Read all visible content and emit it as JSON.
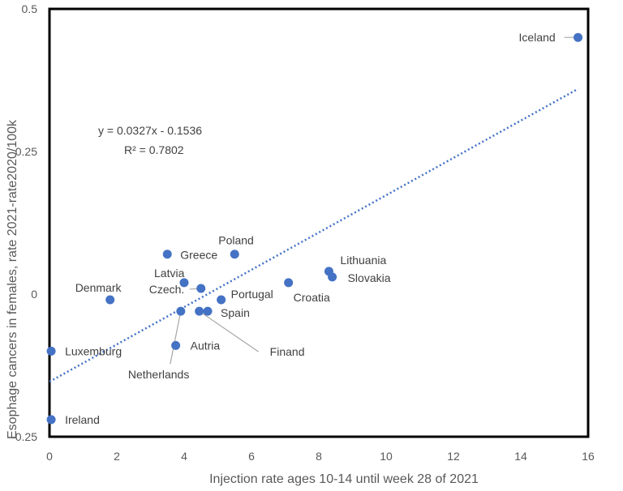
{
  "chart_data": {
    "type": "scatter",
    "xlabel": "Injection rate ages 10-14 until week 28 of 2021",
    "ylabel": "Esophage cancers in females, rate 2021-rate2020/100k",
    "xlim": [
      0,
      16
    ],
    "ylim": [
      -0.25,
      0.5
    ],
    "x_ticks": [
      "0",
      "2",
      "4",
      "6",
      "8",
      "10",
      "12",
      "14",
      "16"
    ],
    "y_ticks": [
      "-0.25",
      "0",
      "0.25",
      "0.5"
    ],
    "grid": false,
    "legend": "none",
    "marker_color": "#4472C4",
    "trendline": {
      "slope": 0.0327,
      "intercept": -0.1536,
      "equation": "y = 0.0327x - 0.1536",
      "r_squared": "R² = 0.7802",
      "style": "dotted",
      "color": "#4472C4"
    },
    "points": [
      {
        "label": "Iceland",
        "x": 15.7,
        "y": 0.45
      },
      {
        "label": "Poland",
        "x": 5.5,
        "y": 0.07
      },
      {
        "label": "Greece",
        "x": 3.5,
        "y": 0.07
      },
      {
        "label": "Latvia",
        "x": 4.0,
        "y": 0.02
      },
      {
        "label": "Czech.",
        "x": 4.5,
        "y": 0.01
      },
      {
        "label": "Denmark",
        "x": 1.8,
        "y": -0.01
      },
      {
        "label": "Portugal",
        "x": 5.1,
        "y": -0.01
      },
      {
        "label": "Croatia",
        "x": 7.1,
        "y": 0.02
      },
      {
        "label": "Lithuania",
        "x": 8.3,
        "y": 0.04
      },
      {
        "label": "Slovakia",
        "x": 8.4,
        "y": 0.03
      },
      {
        "label": "Spain",
        "x": 4.7,
        "y": -0.03
      },
      {
        "label": "Finand",
        "x": 4.45,
        "y": -0.03
      },
      {
        "label": "Netherlands",
        "x": 3.9,
        "y": -0.03
      },
      {
        "label": "Autria",
        "x": 3.75,
        "y": -0.09
      },
      {
        "label": "Luxemburg",
        "x": 0.05,
        "y": -0.1
      },
      {
        "label": "Ireland",
        "x": 0.05,
        "y": -0.22
      }
    ]
  }
}
